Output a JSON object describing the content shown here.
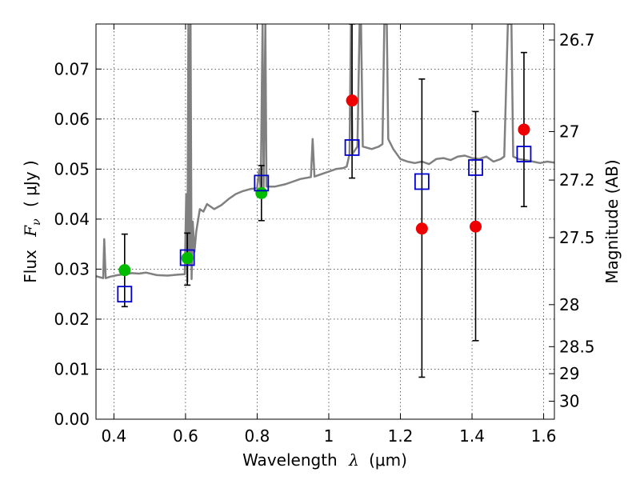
{
  "chart_data": {
    "type": "scatter",
    "xlabel": {
      "prefix": "Wavelength",
      "symbol": "λ",
      "unit": "(μm)"
    },
    "ylabel": {
      "prefix": "Flux",
      "symbol": "F",
      "subscript": "ν",
      "unit": "( μJy )"
    },
    "y2label": "Magnitude (AB)",
    "xlim": [
      0.35,
      1.63
    ],
    "ylim": [
      0.0,
      0.079
    ],
    "grid": true,
    "x_ticks": [
      0.4,
      0.6,
      0.8,
      1.0,
      1.2,
      1.4,
      1.6
    ],
    "x_tick_labels": [
      "0.4",
      "0.6",
      "0.8",
      "1",
      "1.2",
      "1.4",
      "1.6"
    ],
    "y_ticks": [
      0.0,
      0.01,
      0.02,
      0.03,
      0.04,
      0.05,
      0.06,
      0.07
    ],
    "y_tick_labels": [
      "0.00",
      "0.01",
      "0.02",
      "0.03",
      "0.04",
      "0.05",
      "0.06",
      "0.07"
    ],
    "magnitude_ticks": [
      {
        "label": "26.7",
        "flux": 0.0758
      },
      {
        "label": "27",
        "flux": 0.0575
      },
      {
        "label": "27.2",
        "flux": 0.0478
      },
      {
        "label": "27.5",
        "flux": 0.0363
      },
      {
        "label": "28",
        "flux": 0.0229
      },
      {
        "label": "28.5",
        "flux": 0.0145
      },
      {
        "label": "29",
        "flux": 0.0091
      },
      {
        "label": "30",
        "flux": 0.0036
      }
    ],
    "series": [
      {
        "kind": "spectrum",
        "color": "#808080",
        "points": [
          [
            0.35,
            0.0286
          ],
          [
            0.36,
            0.0284
          ],
          [
            0.37,
            0.0282
          ],
          [
            0.373,
            0.036
          ],
          [
            0.377,
            0.0282
          ],
          [
            0.39,
            0.0285
          ],
          [
            0.41,
            0.0288
          ],
          [
            0.43,
            0.029
          ],
          [
            0.45,
            0.0292
          ],
          [
            0.47,
            0.0291
          ],
          [
            0.49,
            0.0293
          ],
          [
            0.52,
            0.0288
          ],
          [
            0.55,
            0.0287
          ],
          [
            0.58,
            0.0289
          ],
          [
            0.598,
            0.029
          ],
          [
            0.602,
            0.045
          ],
          [
            0.605,
            0.0275
          ],
          [
            0.608,
            0.079
          ],
          [
            0.611,
            0.031
          ],
          [
            0.614,
            0.079
          ],
          [
            0.617,
            0.028
          ],
          [
            0.62,
            0.0395
          ],
          [
            0.625,
            0.0335
          ],
          [
            0.63,
            0.0375
          ],
          [
            0.64,
            0.042
          ],
          [
            0.65,
            0.0415
          ],
          [
            0.66,
            0.043
          ],
          [
            0.68,
            0.042
          ],
          [
            0.7,
            0.0428
          ],
          [
            0.72,
            0.044
          ],
          [
            0.74,
            0.045
          ],
          [
            0.76,
            0.0456
          ],
          [
            0.78,
            0.046
          ],
          [
            0.8,
            0.0462
          ],
          [
            0.806,
            0.05
          ],
          [
            0.81,
            0.0455
          ],
          [
            0.815,
            0.079
          ],
          [
            0.818,
            0.046
          ],
          [
            0.823,
            0.079
          ],
          [
            0.826,
            0.0465
          ],
          [
            0.85,
            0.0465
          ],
          [
            0.88,
            0.047
          ],
          [
            0.9,
            0.0475
          ],
          [
            0.92,
            0.048
          ],
          [
            0.95,
            0.0484
          ],
          [
            0.955,
            0.056
          ],
          [
            0.96,
            0.0485
          ],
          [
            0.98,
            0.049
          ],
          [
            1.0,
            0.0495
          ],
          [
            1.02,
            0.05
          ],
          [
            1.04,
            0.0502
          ],
          [
            1.05,
            0.0505
          ],
          [
            1.058,
            0.053
          ],
          [
            1.062,
            0.079
          ],
          [
            1.066,
            0.053
          ],
          [
            1.08,
            0.0545
          ],
          [
            1.086,
            0.079
          ],
          [
            1.09,
            0.079
          ],
          [
            1.095,
            0.0545
          ],
          [
            1.12,
            0.054
          ],
          [
            1.14,
            0.0545
          ],
          [
            1.15,
            0.055
          ],
          [
            1.155,
            0.079
          ],
          [
            1.162,
            0.079
          ],
          [
            1.166,
            0.056
          ],
          [
            1.18,
            0.054
          ],
          [
            1.2,
            0.052
          ],
          [
            1.22,
            0.0515
          ],
          [
            1.24,
            0.0512
          ],
          [
            1.26,
            0.0515
          ],
          [
            1.28,
            0.051
          ],
          [
            1.3,
            0.052
          ],
          [
            1.32,
            0.0522
          ],
          [
            1.34,
            0.0518
          ],
          [
            1.36,
            0.0525
          ],
          [
            1.38,
            0.0527
          ],
          [
            1.4,
            0.0522
          ],
          [
            1.42,
            0.052
          ],
          [
            1.44,
            0.0525
          ],
          [
            1.46,
            0.0515
          ],
          [
            1.48,
            0.052
          ],
          [
            1.49,
            0.0525
          ],
          [
            1.5,
            0.079
          ],
          [
            1.51,
            0.079
          ],
          [
            1.515,
            0.0525
          ],
          [
            1.53,
            0.052
          ],
          [
            1.55,
            0.0518
          ],
          [
            1.57,
            0.0515
          ],
          [
            1.59,
            0.0512
          ],
          [
            1.61,
            0.0515
          ],
          [
            1.63,
            0.0513
          ]
        ]
      },
      {
        "kind": "model",
        "marker": "open-square",
        "color": "#0000cc",
        "points": [
          [
            0.43,
            0.025
          ],
          [
            0.605,
            0.0323
          ],
          [
            0.812,
            0.0472
          ],
          [
            1.065,
            0.0543
          ],
          [
            1.26,
            0.0475
          ],
          [
            1.41,
            0.0503
          ],
          [
            1.545,
            0.053
          ]
        ]
      },
      {
        "kind": "detection",
        "marker": "filled-circle",
        "color": "#00bb00",
        "points": [
          [
            0.43,
            0.0298
          ],
          [
            0.605,
            0.0322
          ],
          [
            0.812,
            0.0452
          ]
        ]
      },
      {
        "kind": "upper-limit",
        "marker": "filled-circle",
        "color": "#ee0000",
        "points": [
          [
            1.065,
            0.0637
          ],
          [
            1.26,
            0.0381
          ],
          [
            1.41,
            0.0385
          ],
          [
            1.545,
            0.0579
          ]
        ]
      },
      {
        "kind": "errorbars",
        "color": "#000000",
        "bars": [
          {
            "x": 0.43,
            "low": 0.0225,
            "high": 0.037
          },
          {
            "x": 0.605,
            "low": 0.0268,
            "high": 0.0372
          },
          {
            "x": 0.812,
            "low": 0.0397,
            "high": 0.0507
          },
          {
            "x": 1.065,
            "low": 0.0482,
            "high": 0.079
          },
          {
            "x": 1.26,
            "low": 0.0084,
            "high": 0.068
          },
          {
            "x": 1.41,
            "low": 0.0157,
            "high": 0.0615
          },
          {
            "x": 1.545,
            "low": 0.0425,
            "high": 0.0733
          }
        ]
      }
    ]
  }
}
